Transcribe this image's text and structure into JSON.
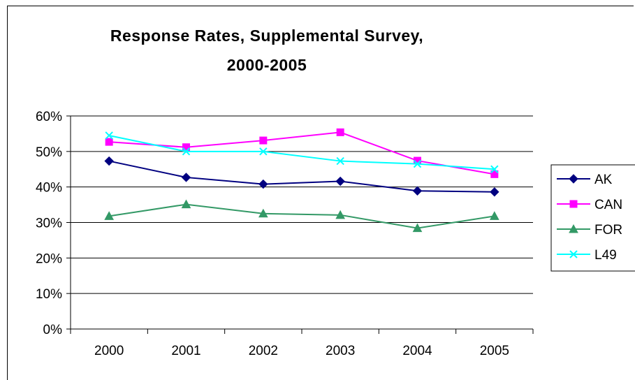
{
  "chart_data": {
    "type": "line",
    "title_lines": [
      "Response Rates, Supplemental Survey,",
      "2000-2005"
    ],
    "categories": [
      "2000",
      "2001",
      "2002",
      "2003",
      "2004",
      "2005"
    ],
    "y_ticks": [
      "0%",
      "10%",
      "20%",
      "30%",
      "40%",
      "50%",
      "60%"
    ],
    "ylim": [
      0,
      0.6
    ],
    "y_format": "percent",
    "grid": true,
    "legend_position": "right",
    "series": [
      {
        "name": "AK",
        "color": "#000080",
        "marker": "diamond",
        "values": [
          0.473,
          0.427,
          0.408,
          0.416,
          0.389,
          0.386
        ]
      },
      {
        "name": "CAN",
        "color": "#FF00FF",
        "marker": "square",
        "values": [
          0.527,
          0.512,
          0.531,
          0.554,
          0.474,
          0.436
        ]
      },
      {
        "name": "FOR",
        "color": "#339966",
        "marker": "triangle",
        "values": [
          0.318,
          0.351,
          0.325,
          0.321,
          0.284,
          0.318
        ]
      },
      {
        "name": "L49",
        "color": "#00FFFF",
        "marker": "x",
        "values": [
          0.545,
          0.5,
          0.5,
          0.473,
          0.465,
          0.45
        ]
      }
    ]
  }
}
